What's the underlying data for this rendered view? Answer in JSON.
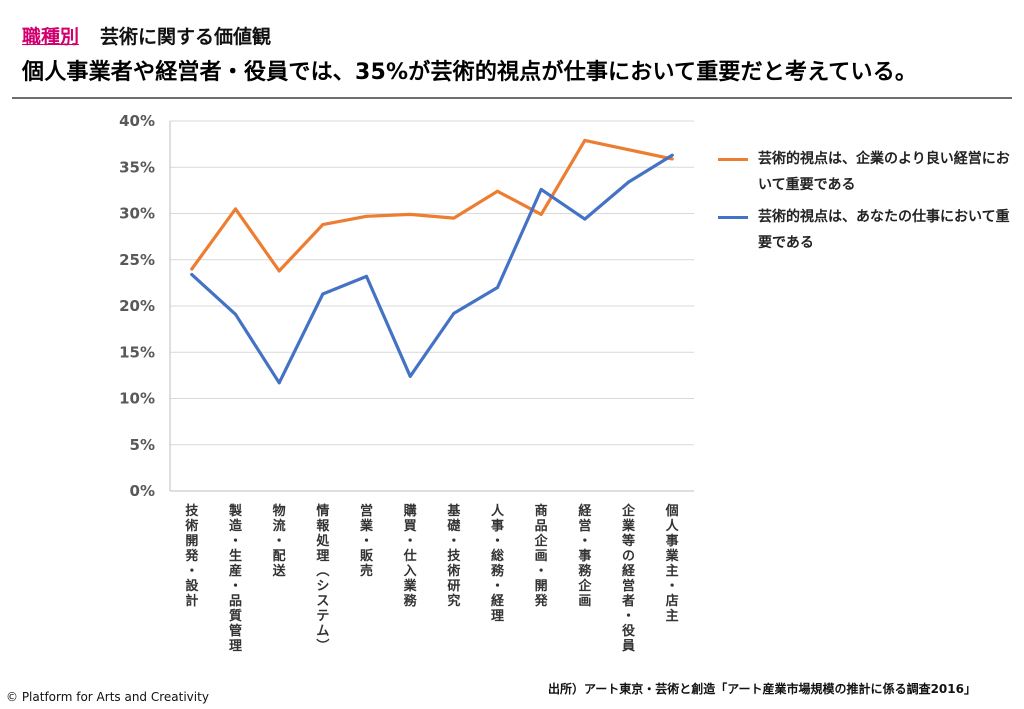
{
  "header": {
    "tag": "職種別",
    "title": "芸術に関する価値観",
    "headline": "個人事業者や経営者・役員では、35%が芸術的視点が仕事において重要だと考えている。"
  },
  "chart_data": {
    "type": "line",
    "title": "",
    "xlabel": "",
    "ylabel": "",
    "ylim": [
      0,
      40
    ],
    "yticks": [
      "0%",
      "5%",
      "10%",
      "15%",
      "20%",
      "25%",
      "30%",
      "35%",
      "40%"
    ],
    "grid": true,
    "legend_position": "right",
    "categories": [
      "技術開発・設計",
      "製造・生産・品質管理",
      "物流・配送",
      "情報処理（システム）",
      "営業・販売",
      "購買・仕入業務",
      "基礎・技術研究",
      "人事・総務・経理",
      "商品企画・開発",
      "経営・事務企画",
      "企業等の経営者・役員",
      "個人事業主・店主"
    ],
    "series": [
      {
        "name": "芸術的視点は、企業のより良い経営において重要である",
        "color": "#ed7d31",
        "values": [
          24.0,
          30.5,
          23.8,
          28.8,
          29.7,
          29.9,
          29.5,
          32.4,
          29.9,
          37.9,
          36.9,
          35.9
        ]
      },
      {
        "name": "芸術的視点は、あなたの仕事において重要である",
        "color": "#4472c4",
        "values": [
          23.4,
          19.1,
          11.7,
          21.3,
          23.2,
          12.4,
          19.2,
          22.0,
          32.6,
          29.4,
          33.4,
          36.3
        ]
      }
    ]
  },
  "legend": [
    {
      "text": "芸術的視点は、企業のより良い経営において重要である",
      "color": "#ed7d31"
    },
    {
      "text": "芸術的視点は、あなたの仕事において重要である",
      "color": "#4472c4"
    }
  ],
  "footer": {
    "source": "出所）アート東京・芸術と創造「アート産業市場規模の推計に係る調査2016」",
    "copyright": "© Platform for Arts and Creativity"
  }
}
